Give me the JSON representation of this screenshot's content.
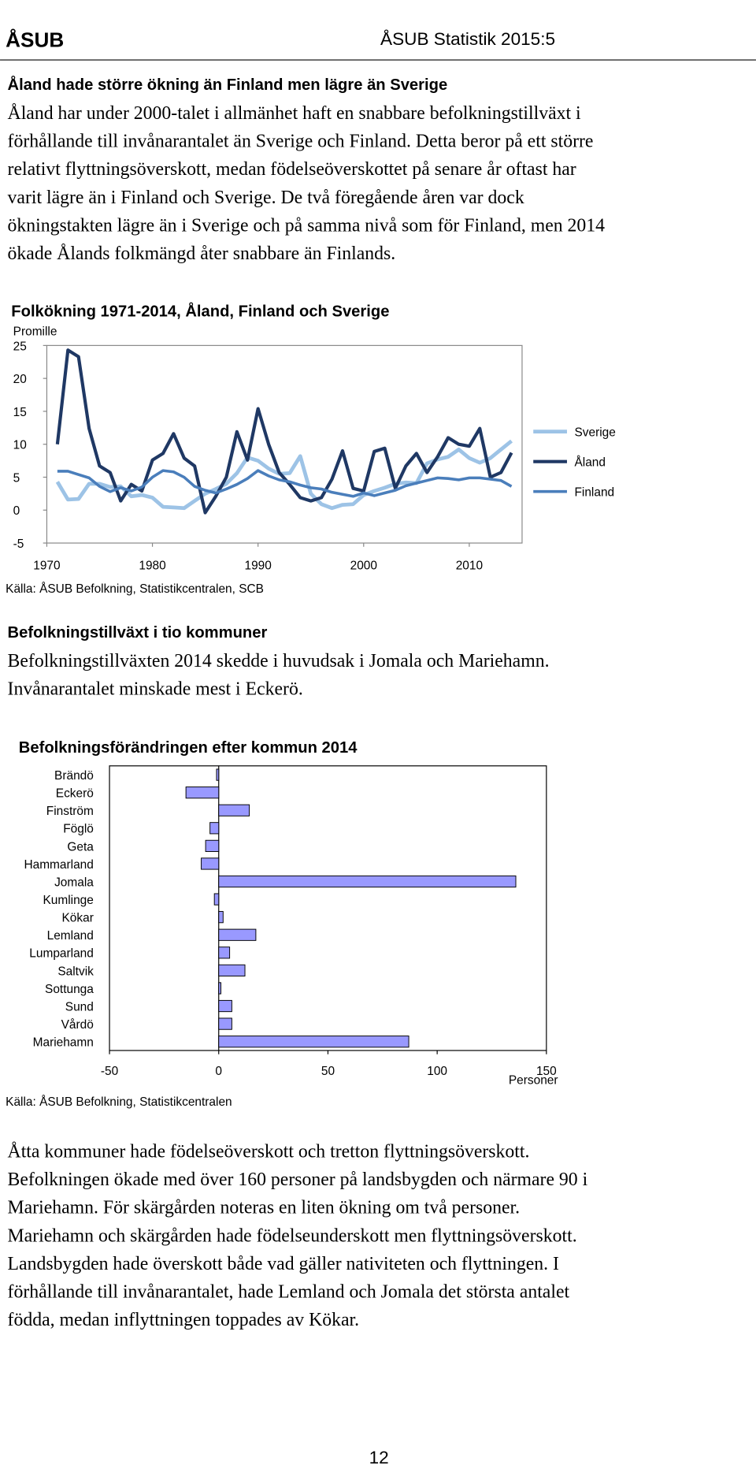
{
  "header": {
    "logo": "ÅSUB",
    "title": "ÅSUB Statistik 2015:5"
  },
  "section1": {
    "heading": "Åland hade större ökning än Finland men lägre än Sverige",
    "lines": [
      "Åland har under 2000-talet i allmänhet haft en snabbare befolkningstillväxt i",
      "förhållande till invånarantalet än Sverige och Finland. Detta beror på ett större",
      "relativt flyttningsöverskott, medan födelseöverskottet på senare år oftast har",
      "varit lägre än i Finland och Sverige. De två föregående åren var dock",
      "ökningstakten lägre än i Sverige och på samma nivå som för Finland, men 2014",
      "ökade Ålands folkmängd åter snabbare än Finlands."
    ]
  },
  "section2": {
    "heading": "Befolkningstillväxt i tio kommuner",
    "lines": [
      "Befolkningstillväxten 2014 skedde i huvudsak i Jomala och Mariehamn.",
      "Invånarantalet minskade mest i Eckerö."
    ]
  },
  "section3": {
    "lines": [
      "Åtta kommuner hade födelseöverskott och tretton flyttningsöverskott.",
      "Befolkningen ökade med över 160 personer på landsbygden och närmare 90 i",
      "Mariehamn. För skärgården noteras en liten ökning om två personer.",
      "Mariehamn och skärgården hade födelseunderskott men flyttningsöverskott.",
      "Landsbygden hade överskott både vad gäller nativiteten och flyttningen. I",
      "förhållande till invånarantalet, hade Lemland och Jomala det största antalet",
      "födda, medan inflyttningen toppades av Kökar."
    ]
  },
  "footer": {
    "page": "12"
  },
  "chart_data": [
    {
      "type": "line",
      "title": "Folkökning 1971-2014, Åland, Finland och Sverige",
      "y_label": "Promille",
      "source": "Källa: ÅSUB Befolkning, Statistikcentralen, SCB",
      "x": [
        1971,
        1972,
        1973,
        1974,
        1975,
        1976,
        1977,
        1978,
        1979,
        1980,
        1981,
        1982,
        1983,
        1984,
        1985,
        1986,
        1987,
        1988,
        1989,
        1990,
        1991,
        1992,
        1993,
        1994,
        1995,
        1996,
        1997,
        1998,
        1999,
        2000,
        2001,
        2002,
        2003,
        2004,
        2005,
        2006,
        2007,
        2008,
        2009,
        2010,
        2011,
        2012,
        2013,
        2014
      ],
      "xlim": [
        1970,
        2015
      ],
      "xticks": [
        1970,
        1980,
        1990,
        2000,
        2010
      ],
      "ylim": [
        -5,
        25
      ],
      "yticks": [
        -5,
        0,
        5,
        10,
        15,
        20,
        25
      ],
      "legend": "right",
      "series": [
        {
          "name": "Sverige",
          "color": "#9dc3e6",
          "values": [
            4.3,
            1.6,
            1.7,
            4,
            4,
            3.5,
            3.6,
            2.1,
            2.3,
            1.9,
            0.5,
            0.4,
            0.3,
            1.4,
            2.5,
            3.2,
            4,
            5.6,
            8,
            7.5,
            6.3,
            5.5,
            5.6,
            8.2,
            2.5,
            0.9,
            0.3,
            0.8,
            0.9,
            2.3,
            2.9,
            3.4,
            4,
            4.2,
            4.1,
            7.1,
            7.7,
            8.1,
            9.2,
            7.9,
            7.2,
            7.9,
            9.2,
            10.5
          ]
        },
        {
          "name": "Åland",
          "color": "#1f3864",
          "values": [
            10,
            24.3,
            23.3,
            12.4,
            6.7,
            5.7,
            1.4,
            3.9,
            2.9,
            7.6,
            8.6,
            11.6,
            7.9,
            6.7,
            -0.4,
            2.1,
            5,
            11.9,
            7.6,
            15.4,
            10,
            5.7,
            3.9,
            1.9,
            1.4,
            1.9,
            4.7,
            9,
            3.3,
            2.9,
            8.9,
            9.4,
            3.3,
            6.7,
            8.6,
            5.7,
            8.1,
            11,
            10,
            9.7,
            12.4,
            5,
            5.7,
            8.7
          ]
        },
        {
          "name": "Finland",
          "color": "#4a7ebb",
          "values": [
            5.9,
            5.9,
            5.4,
            4.9,
            3.6,
            2.8,
            3.4,
            2.9,
            3.5,
            5,
            6,
            5.8,
            5,
            3.6,
            3,
            2.6,
            3.2,
            3.9,
            4.8,
            6,
            5.2,
            4.6,
            4.3,
            3.8,
            3.4,
            3.2,
            2.7,
            2.4,
            2.1,
            2.6,
            2.2,
            2.6,
            3,
            3.7,
            4.1,
            4.5,
            4.9,
            4.8,
            4.6,
            4.9,
            4.9,
            4.7,
            4.5,
            3.6
          ]
        }
      ]
    },
    {
      "type": "bar",
      "orientation": "horizontal",
      "title": "Befolkningsförändringen efter kommun 2014",
      "x_label": "Personer",
      "source": "Källa: ÅSUB Befolkning, Statistikcentralen",
      "categories": [
        "Brändö",
        "Eckerö",
        "Finström",
        "Föglö",
        "Geta",
        "Hammarland",
        "Jomala",
        "Kumlinge",
        "Kökar",
        "Lemland",
        "Lumparland",
        "Saltvik",
        "Sottunga",
        "Sund",
        "Vårdö",
        "Mariehamn"
      ],
      "values": [
        -1,
        -15,
        14,
        -4,
        -6,
        -8,
        136,
        -2,
        2,
        17,
        5,
        12,
        1,
        6,
        6,
        87
      ],
      "color": "#9999ff",
      "xlim": [
        -50,
        150
      ],
      "xticks": [
        -50,
        0,
        50,
        100,
        150
      ]
    }
  ]
}
